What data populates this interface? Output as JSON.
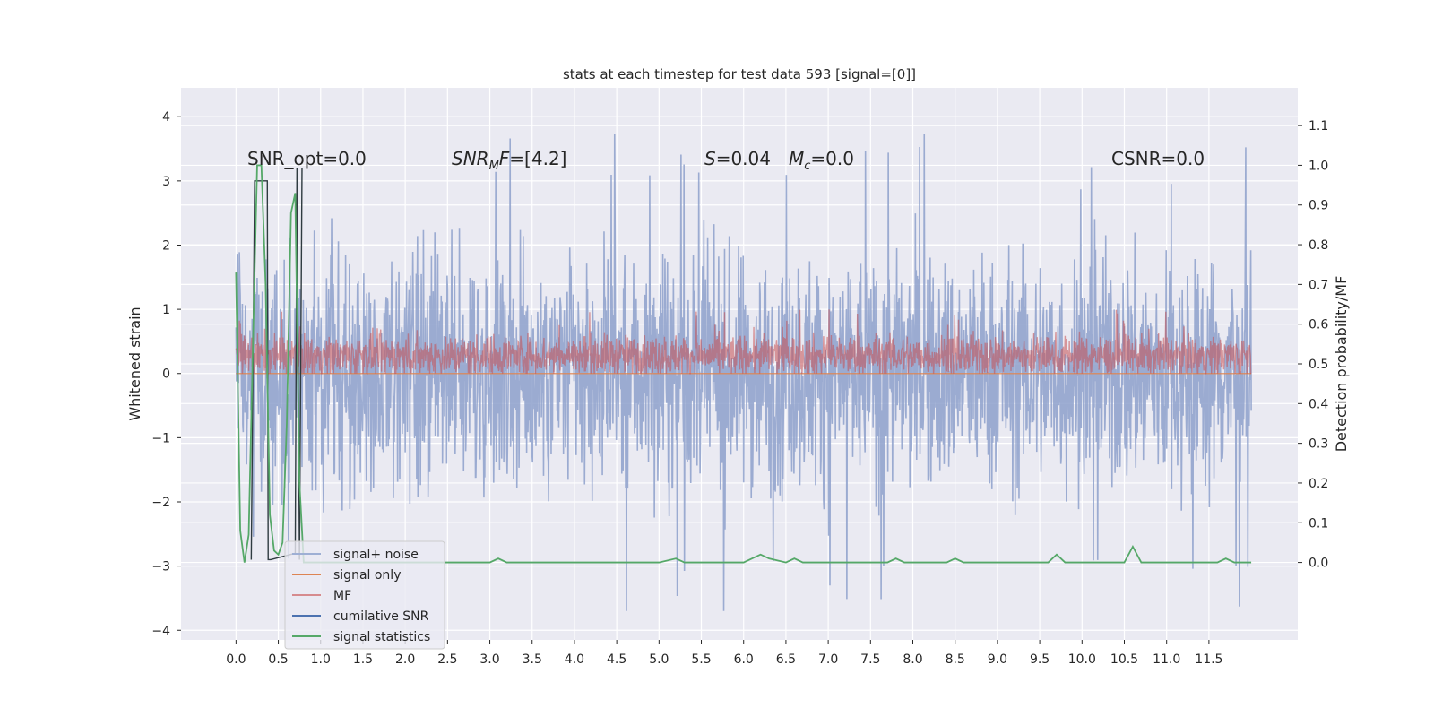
{
  "chart_data": {
    "type": "line",
    "title": "stats at each timestep for test data 593 [signal=[0]]",
    "ylabel": "Whitened strain",
    "ylabel_right": "Detection probability/MF",
    "xlim": [
      -0.65,
      12.55
    ],
    "ylim": [
      -4.15,
      4.45
    ],
    "ylim_right": [
      -0.195,
      1.195
    ],
    "x_ticks": [
      "0.0",
      "0.5",
      "1.0",
      "1.5",
      "2.0",
      "2.5",
      "3.0",
      "3.5",
      "4.0",
      "4.5",
      "5.0",
      "5.5",
      "6.0",
      "6.5",
      "7.0",
      "7.5",
      "8.0",
      "8.5",
      "9.0",
      "9.5",
      "10.0",
      "10.5",
      "11.0",
      "11.5"
    ],
    "y_ticks": [
      "4",
      "3",
      "2",
      "1",
      "0",
      "−1",
      "−2",
      "−3",
      "−4"
    ],
    "y_ticks_right": [
      "1.1",
      "1.0",
      "0.9",
      "0.8",
      "0.7",
      "0.6",
      "0.5",
      "0.4",
      "0.3",
      "0.2",
      "0.1",
      "0.0"
    ],
    "annotations": [
      {
        "id": "snr-opt",
        "text": "SNR_opt=0.0"
      },
      {
        "id": "snr-mf",
        "text": "SNR",
        "sub": "M",
        "tail": "F=[4.2]"
      },
      {
        "id": "s-mc-s",
        "text": "S",
        "tail": "=0.04"
      },
      {
        "id": "s-mc-m",
        "text": "M",
        "sub": "c",
        "tail": "=0.0"
      },
      {
        "id": "csnr",
        "text": "CSNR=0.0"
      }
    ],
    "series": [
      {
        "name": "signal+ noise",
        "color": "#8da0cb",
        "style": "noise",
        "x_range": [
          0,
          12
        ],
        "amplitude_range": [
          -3.7,
          4.1
        ]
      },
      {
        "name": "signal only",
        "color": "#dd8452",
        "style": "flat",
        "values_y": 0.0
      },
      {
        "name": "MF",
        "color": "#c44e52",
        "style": "noise",
        "amplitude_range": [
          0.0,
          1.0
        ]
      },
      {
        "name": "cumilative SNR",
        "color": "#4c72b0",
        "style": "spikes"
      },
      {
        "name": "signal statistics",
        "color": "#55a868",
        "style": "line",
        "axis": "right",
        "x": [
          0.0,
          0.05,
          0.1,
          0.15,
          0.2,
          0.25,
          0.3,
          0.35,
          0.4,
          0.45,
          0.5,
          0.55,
          0.6,
          0.65,
          0.7,
          0.75,
          0.8,
          0.9,
          1.0,
          2.0,
          3.0,
          3.1,
          3.2,
          4.0,
          5.0,
          5.2,
          5.3,
          6.0,
          6.2,
          6.3,
          6.5,
          6.6,
          6.7,
          6.8,
          7.0,
          7.7,
          7.8,
          7.9,
          8.0,
          8.4,
          8.5,
          8.6,
          9.0,
          9.6,
          9.7,
          9.8,
          10.0,
          10.5,
          10.6,
          10.7,
          10.8,
          11.6,
          11.7,
          11.8,
          12.0
        ],
        "y": [
          0.73,
          0.08,
          0.0,
          0.07,
          0.55,
          1.0,
          1.0,
          0.7,
          0.12,
          0.03,
          0.02,
          0.05,
          0.35,
          0.88,
          0.93,
          0.2,
          0.0,
          0.0,
          0.0,
          0.0,
          0.0,
          0.01,
          0.0,
          0.0,
          0.0,
          0.01,
          0.0,
          0.0,
          0.02,
          0.01,
          0.0,
          0.01,
          0.0,
          0.0,
          0.0,
          0.0,
          0.01,
          0.0,
          0.0,
          0.0,
          0.01,
          0.0,
          0.0,
          0.0,
          0.02,
          0.0,
          0.0,
          0.0,
          0.04,
          0.0,
          0.0,
          0.0,
          0.01,
          0.0,
          0.0
        ]
      }
    ],
    "legend": {
      "placement": "lower-left"
    },
    "grid": true,
    "background": "#eaeaf2"
  }
}
